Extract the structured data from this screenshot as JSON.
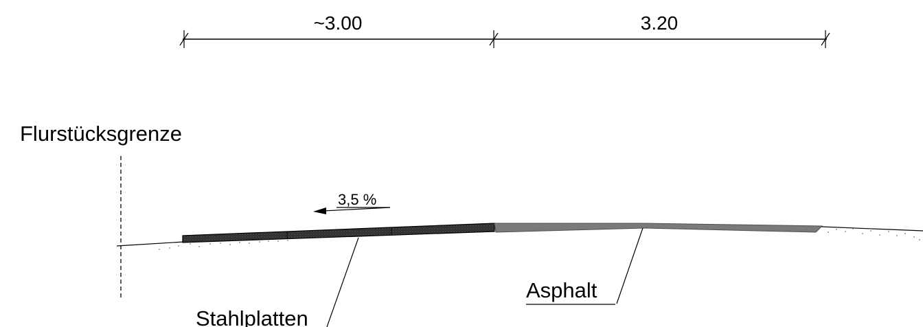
{
  "dimensions": {
    "left_width": "~3.00",
    "right_width": "3.20"
  },
  "labels": {
    "boundary": "Flurstücksgrenze",
    "slope": "3,5 %",
    "steel_plates": "Stahlplatten",
    "asphalt": "Asphalt"
  },
  "colors": {
    "line": "#000000",
    "asphalt": "#7a7a7a",
    "steel_plate": "#2f2f2f",
    "soil_dots": "#777777"
  }
}
